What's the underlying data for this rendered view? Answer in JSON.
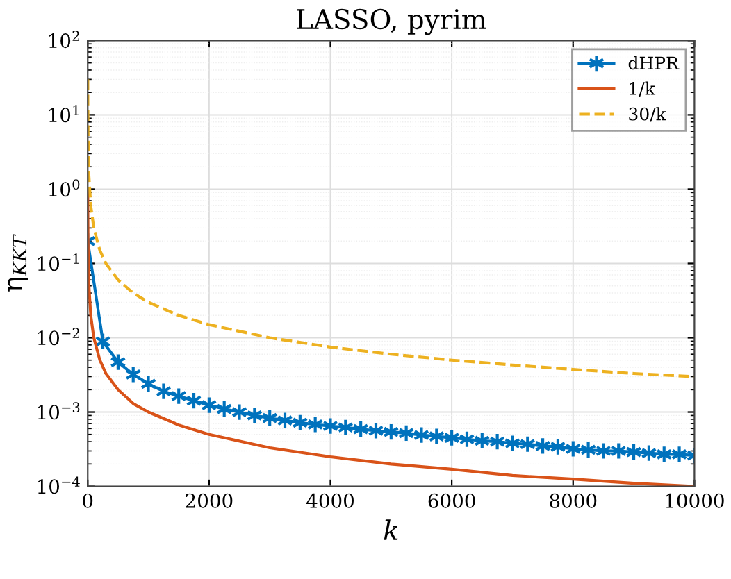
{
  "chart_data": {
    "type": "line",
    "title": "LASSO, pyrim",
    "xlabel": "k",
    "ylabel": "η$_{KKT}$",
    "log": "y",
    "grid": true,
    "legend": "top right",
    "xlim": [
      0,
      10000
    ],
    "xticks": [
      0,
      2000,
      4000,
      6000,
      8000,
      10000
    ],
    "ylim": [
      0.0001,
      100
    ],
    "yticks": [
      {
        "value": 0.0001,
        "label": "10$^{−4}$"
      },
      {
        "value": 0.001,
        "label": "10$^{−3}$"
      },
      {
        "value": 0.01,
        "label": "10$^{−2}$"
      },
      {
        "value": 0.1,
        "label": "10$^{−1}$"
      },
      {
        "value": 1,
        "label": "10$^{0}$"
      },
      {
        "value": 10,
        "label": "10$^{1}$"
      },
      {
        "value": 100,
        "label": "10$^{2}$"
      }
    ],
    "series": [
      {
        "name": "dHPR",
        "color": "#0072bd",
        "marker": "cross",
        "line_style": "solid",
        "x": [
          0,
          250,
          500,
          750,
          1000,
          1250,
          1500,
          1750,
          2000,
          2250,
          2500,
          2750,
          3000,
          3250,
          3500,
          3750,
          4000,
          4250,
          4500,
          4750,
          5000,
          5250,
          5500,
          5750,
          6000,
          6250,
          6500,
          6750,
          7000,
          7250,
          7500,
          7750,
          8000,
          8250,
          8500,
          8750,
          9000,
          9250,
          9500,
          9750,
          10000
        ],
        "values": [
          0.2,
          0.0089,
          0.0047,
          0.0032,
          0.0024,
          0.0019,
          0.00164,
          0.00142,
          0.00124,
          0.0011,
          0.001,
          0.0009,
          0.00083,
          0.00077,
          0.00072,
          0.00068,
          0.00065,
          0.00062,
          0.00059,
          0.00056,
          0.00054,
          0.00052,
          0.00049,
          0.00047,
          0.00045,
          0.00043,
          0.00041,
          0.0004,
          0.00038,
          0.00037,
          0.00035,
          0.00034,
          0.00032,
          0.00031,
          0.0003,
          0.0003,
          0.00029,
          0.00028,
          0.00027,
          0.00027,
          0.00026
        ]
      },
      {
        "name": "1/k",
        "color": "#d95319",
        "marker": "none",
        "line_style": "solid",
        "x": [
          1,
          2,
          5,
          10,
          20,
          50,
          100,
          200,
          300,
          500,
          750,
          1000,
          1500,
          2000,
          3000,
          4000,
          5000,
          6000,
          7000,
          8000,
          9000,
          10000
        ],
        "values": [
          1,
          0.5,
          0.2,
          0.1,
          0.05,
          0.02,
          0.01,
          0.005,
          0.0033,
          0.002,
          0.0013,
          0.001,
          0.00067,
          0.0005,
          0.00033,
          0.00025,
          0.0002,
          0.00017,
          0.00014,
          0.000125,
          0.00011,
          0.0001
        ]
      },
      {
        "name": "30/k",
        "color": "#edb120",
        "marker": "none",
        "line_style": "dashed",
        "x": [
          1,
          2,
          5,
          10,
          20,
          50,
          100,
          200,
          300,
          500,
          750,
          1000,
          1500,
          2000,
          3000,
          4000,
          5000,
          6000,
          7000,
          8000,
          9000,
          10000
        ],
        "values": [
          30,
          15,
          6,
          3,
          1.5,
          0.6,
          0.3,
          0.15,
          0.1,
          0.06,
          0.04,
          0.03,
          0.02,
          0.015,
          0.01,
          0.0075,
          0.006,
          0.005,
          0.0043,
          0.00375,
          0.0033,
          0.003
        ]
      }
    ]
  }
}
